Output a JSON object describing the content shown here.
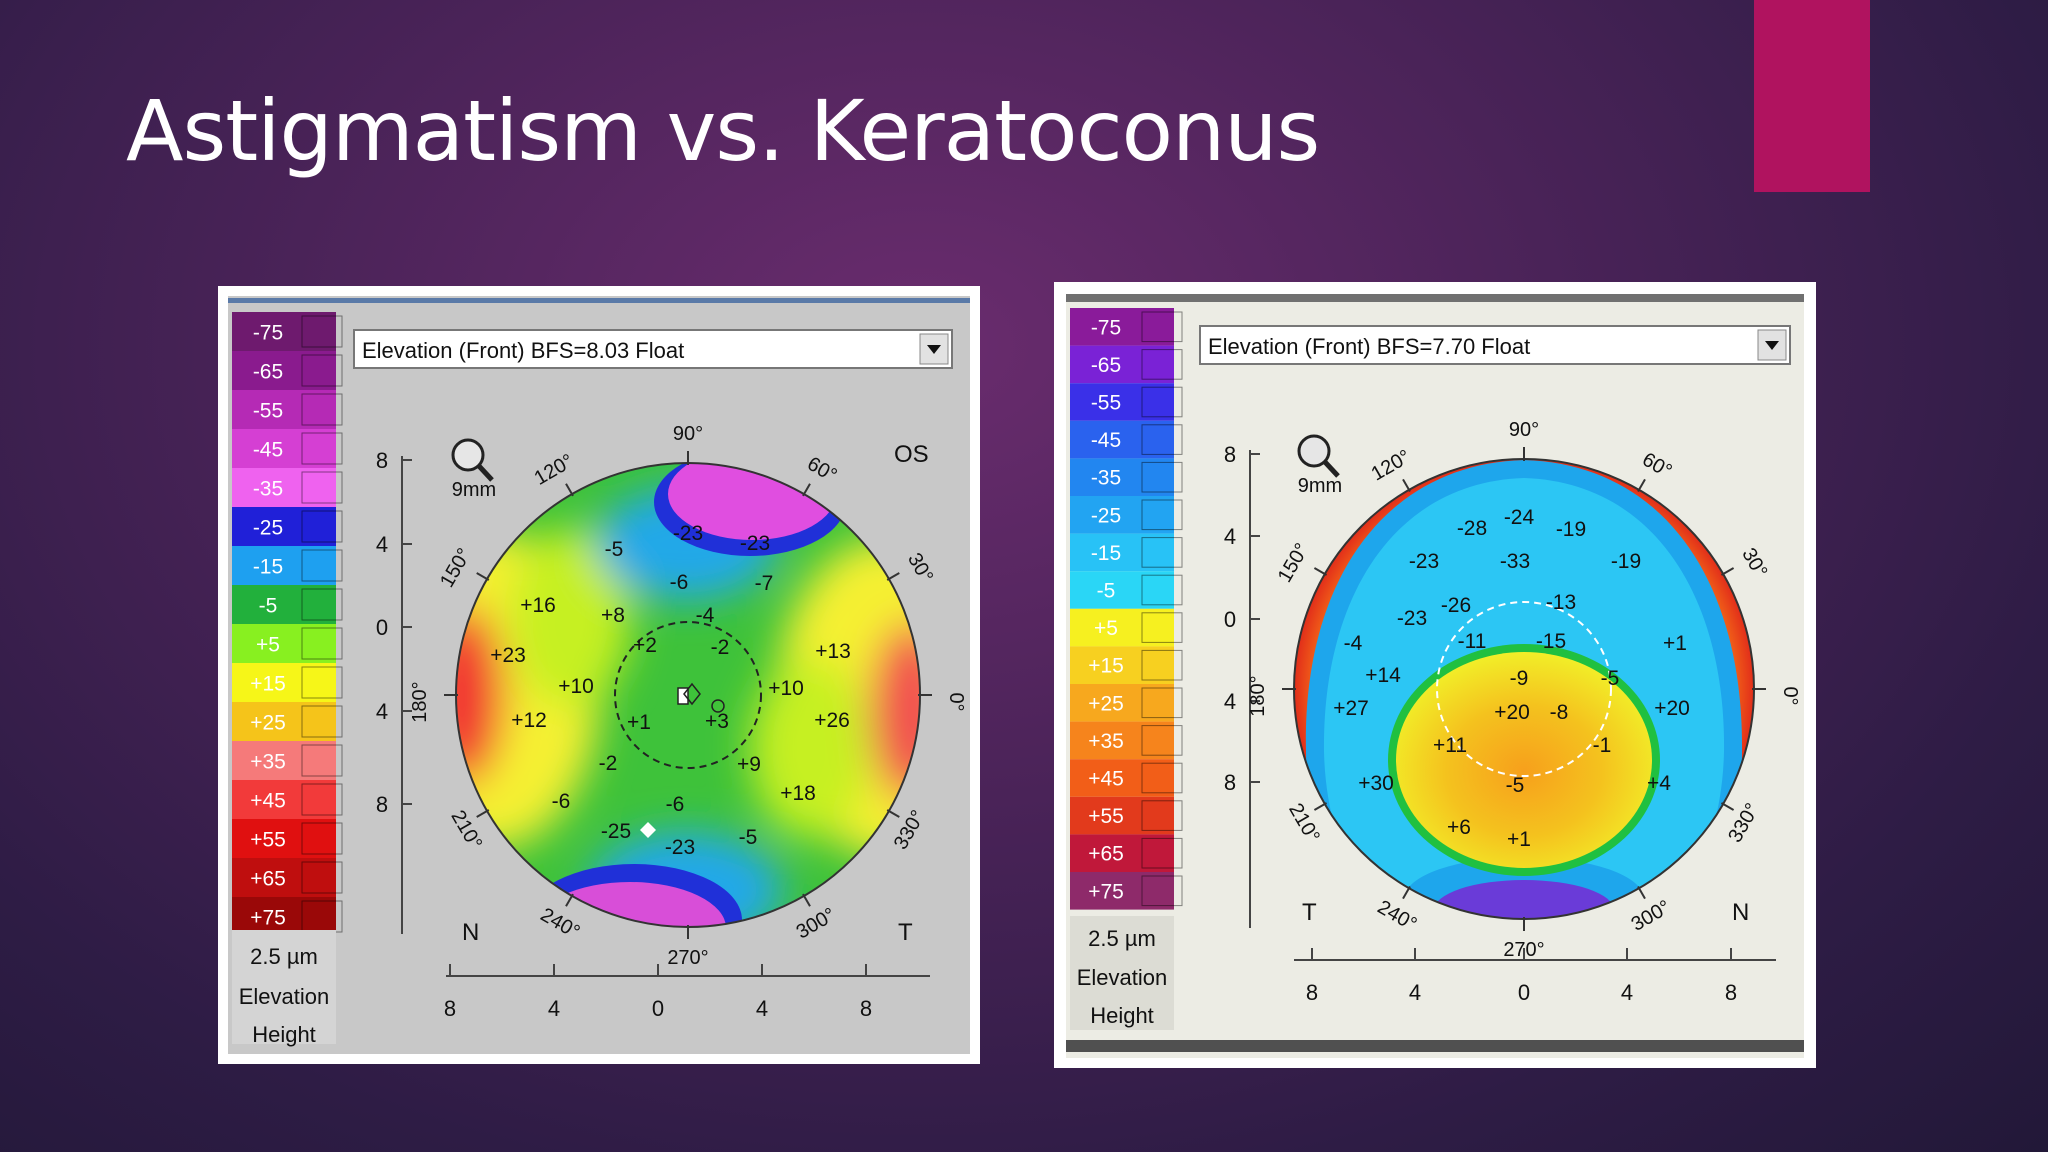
{
  "slide": {
    "title": "Astigmatism vs. Keratoconus",
    "accent_color": "#b0135f"
  },
  "maps": [
    {
      "condition": "astigmatism",
      "dropdown_label": "Elevation (Front)  BFS=8.03 Float",
      "eye": "OS",
      "left_label": "N",
      "right_label": "T",
      "zoom_label": "9mm",
      "scale_step": "2.5 µm",
      "scale_labels": [
        "Elevation",
        "Height"
      ],
      "legend_values": [
        "-75",
        "-65",
        "-55",
        "-45",
        "-35",
        "-25",
        "-15",
        "-5",
        "+5",
        "+15",
        "+25",
        "+35",
        "+45",
        "+55",
        "+65",
        "+75"
      ],
      "legend_colors": [
        "#6e1a6e",
        "#8a1b8e",
        "#b52ab5",
        "#d53fd3",
        "#ef62ef",
        "#2020d8",
        "#1ea0f0",
        "#22b03c",
        "#88f020",
        "#f6f618",
        "#f5c41a",
        "#f57a7a",
        "#f23a3a",
        "#e01010",
        "#bf0e0e",
        "#9a0808"
      ],
      "y_ticks": [
        "8",
        "4",
        "0",
        "4",
        "8"
      ],
      "x_ticks": [
        "8",
        "4",
        "0",
        "4",
        "8"
      ],
      "angle_labels": [
        "90°",
        "60°",
        "30°",
        "0°",
        "330°",
        "300°",
        "270°",
        "240°",
        "210°",
        "180°",
        "150°",
        "120°"
      ],
      "map_values": [
        "-23",
        "-23",
        "-5",
        "-6",
        "-7",
        "-4",
        "+16",
        "+8",
        "+2",
        "-2",
        "+23",
        "+10",
        "+13",
        "+10",
        "+26",
        "+12",
        "+1",
        "+3",
        "-2",
        "+9",
        "-6",
        "-6",
        "+18",
        "-5",
        "-25",
        "-23"
      ]
    },
    {
      "condition": "keratoconus",
      "dropdown_label": "Elevation (Front)  BFS=7.70 Float",
      "left_label": "T",
      "right_label": "N",
      "zoom_label": "9mm",
      "scale_step": "2.5 µm",
      "scale_labels": [
        "Elevation",
        "Height"
      ],
      "legend_values": [
        "-75",
        "-65",
        "-55",
        "-45",
        "-35",
        "-25",
        "-15",
        "-5",
        "+5",
        "+15",
        "+25",
        "+35",
        "+45",
        "+55",
        "+65",
        "+75"
      ],
      "legend_colors": [
        "#8a1b9a",
        "#7a22d6",
        "#3a30e8",
        "#2a62ee",
        "#2286f0",
        "#22a4f2",
        "#28c2f6",
        "#2ad6f6",
        "#f6f020",
        "#f7d020",
        "#f7a81e",
        "#f6841c",
        "#f25e18",
        "#e23a1c",
        "#c0183a",
        "#8e2a6a"
      ],
      "y_ticks": [
        "8",
        "4",
        "0",
        "4",
        "8"
      ],
      "x_ticks": [
        "8",
        "4",
        "0",
        "4",
        "8"
      ],
      "angle_labels": [
        "90°",
        "60°",
        "30°",
        "0°",
        "330°",
        "300°",
        "270°",
        "240°",
        "210°",
        "180°",
        "150°",
        "120°"
      ],
      "map_values": [
        "-24",
        "-28",
        "-19",
        "-23",
        "-33",
        "-19",
        "-23",
        "-26",
        "-13",
        "-4",
        "-11",
        "-15",
        "+1",
        "+14",
        "-9",
        "-5",
        "+27",
        "+20",
        "-8",
        "+20",
        "+11",
        "-1",
        "+30",
        "-5",
        "+4",
        "+6",
        "+1"
      ]
    }
  ]
}
